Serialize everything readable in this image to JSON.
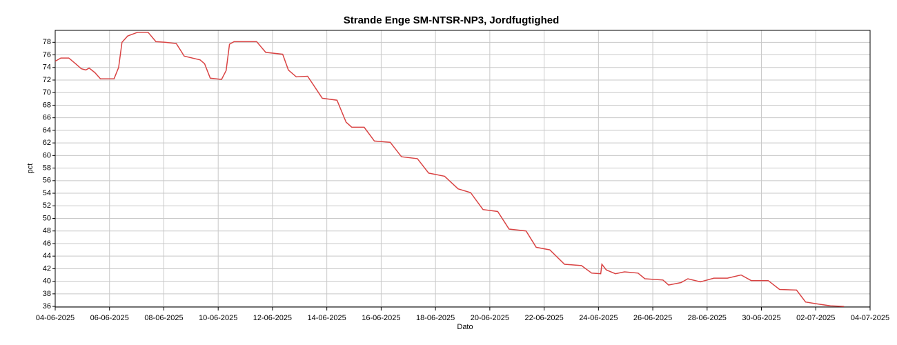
{
  "chart_data": {
    "type": "line",
    "title": "Strande Enge SM-NTSR-NP3, Jordfugtighed",
    "xlabel": "Dato",
    "ylabel": "pct",
    "grid": true,
    "ylim": [
      35.9,
      79.9
    ],
    "yticks": [
      36,
      38,
      40,
      42,
      44,
      46,
      48,
      50,
      52,
      54,
      56,
      58,
      60,
      62,
      64,
      66,
      68,
      70,
      72,
      74,
      76,
      78
    ],
    "xlim": [
      "2025-06-04T00:00",
      "2025-07-04T00:00"
    ],
    "xticks": [
      {
        "value": "2025-06-04T00:00",
        "label": "04-06-2025"
      },
      {
        "value": "2025-06-06T00:00",
        "label": "06-06-2025"
      },
      {
        "value": "2025-06-08T00:00",
        "label": "08-06-2025"
      },
      {
        "value": "2025-06-10T00:00",
        "label": "10-06-2025"
      },
      {
        "value": "2025-06-12T00:00",
        "label": "12-06-2025"
      },
      {
        "value": "2025-06-14T00:00",
        "label": "14-06-2025"
      },
      {
        "value": "2025-06-16T00:00",
        "label": "16-06-2025"
      },
      {
        "value": "2025-06-18T00:00",
        "label": "18-06-2025"
      },
      {
        "value": "2025-06-20T00:00",
        "label": "20-06-2025"
      },
      {
        "value": "2025-06-22T00:00",
        "label": "22-06-2025"
      },
      {
        "value": "2025-06-24T00:00",
        "label": "24-06-2025"
      },
      {
        "value": "2025-06-26T00:00",
        "label": "26-06-2025"
      },
      {
        "value": "2025-06-28T00:00",
        "label": "28-06-2025"
      },
      {
        "value": "2025-06-30T00:00",
        "label": "30-06-2025"
      },
      {
        "value": "2025-07-02T00:00",
        "label": "02-07-2025"
      },
      {
        "value": "2025-07-04T00:00",
        "label": "04-07-2025"
      }
    ],
    "x": [
      "2025-06-04T00:00",
      "2025-06-04T05:00",
      "2025-06-04T12:00",
      "2025-06-04T18:00",
      "2025-06-04T23:00",
      "2025-06-05T03:00",
      "2025-06-05T06:00",
      "2025-06-05T11:00",
      "2025-06-05T16:00",
      "2025-06-06T04:00",
      "2025-06-06T08:00",
      "2025-06-06T11:00",
      "2025-06-06T16:00",
      "2025-06-07T01:00",
      "2025-06-07T10:00",
      "2025-06-07T17:00",
      "2025-06-08T01:00",
      "2025-06-08T11:00",
      "2025-06-08T18:00",
      "2025-06-09T08:00",
      "2025-06-09T12:00",
      "2025-06-09T17:00",
      "2025-06-10T03:00",
      "2025-06-10T07:00",
      "2025-06-10T10:00",
      "2025-06-10T14:00",
      "2025-06-11T10:00",
      "2025-06-11T18:00",
      "2025-06-12T09:00",
      "2025-06-12T14:00",
      "2025-06-12T21:00",
      "2025-06-13T07:00",
      "2025-06-13T20:00",
      "2025-06-14T09:00",
      "2025-06-14T17:00",
      "2025-06-14T22:00",
      "2025-06-15T09:00",
      "2025-06-15T18:00",
      "2025-06-16T08:00",
      "2025-06-16T18:00",
      "2025-06-17T08:00",
      "2025-06-17T18:00",
      "2025-06-18T08:00",
      "2025-06-18T20:00",
      "2025-06-19T07:00",
      "2025-06-19T18:00",
      "2025-06-20T07:00",
      "2025-06-20T17:00",
      "2025-06-21T08:00",
      "2025-06-21T17:00",
      "2025-06-22T05:00",
      "2025-06-22T18:00",
      "2025-06-23T09:00",
      "2025-06-23T18:00",
      "2025-06-24T02:00",
      "2025-06-24T03:00",
      "2025-06-24T07:00",
      "2025-06-24T15:00",
      "2025-06-24T23:00",
      "2025-06-25T11:00",
      "2025-06-25T17:00",
      "2025-06-26T09:00",
      "2025-06-26T14:00",
      "2025-06-27T01:00",
      "2025-06-27T07:00",
      "2025-06-27T18:00",
      "2025-06-28T06:00",
      "2025-06-28T18:00",
      "2025-06-29T06:00",
      "2025-06-29T15:00",
      "2025-06-30T06:00",
      "2025-06-30T16:00",
      "2025-07-01T07:00",
      "2025-07-01T15:00",
      "2025-07-02T01:00",
      "2025-07-02T13:00",
      "2025-07-03T01:00"
    ],
    "series": [
      {
        "color": "#d94343",
        "values": [
          75.0,
          75.5,
          75.5,
          74.6,
          73.8,
          73.6,
          73.9,
          73.2,
          72.2,
          72.2,
          74.0,
          78.0,
          79.0,
          79.6,
          79.6,
          78.1,
          78.0,
          77.8,
          75.8,
          75.2,
          74.6,
          72.3,
          72.1,
          73.5,
          77.7,
          78.1,
          78.1,
          76.4,
          76.1,
          73.6,
          72.5,
          72.6,
          69.1,
          68.8,
          65.3,
          64.5,
          64.5,
          62.3,
          62.1,
          59.8,
          59.5,
          57.2,
          56.7,
          54.7,
          54.1,
          51.4,
          51.1,
          48.3,
          48.0,
          45.4,
          45.0,
          42.7,
          42.5,
          41.3,
          41.2,
          42.7,
          41.8,
          41.2,
          41.5,
          41.3,
          40.4,
          40.2,
          39.4,
          39.8,
          40.4,
          39.9,
          40.5,
          40.5,
          41.0,
          40.1,
          40.1,
          38.7,
          38.6,
          36.7,
          36.4,
          36.1,
          36.0
        ]
      }
    ]
  }
}
